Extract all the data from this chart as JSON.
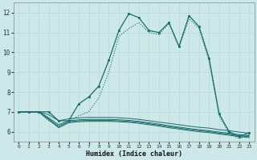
{
  "xlabel": "Humidex (Indice chaleur)",
  "background_color": "#cce8e8",
  "line_color": "#1a6b6b",
  "grid_color": "#b8d8d8",
  "xlim": [
    -0.5,
    23.5
  ],
  "ylim": [
    5.5,
    12.5
  ],
  "xticks": [
    0,
    1,
    2,
    3,
    4,
    5,
    6,
    7,
    8,
    9,
    10,
    11,
    12,
    13,
    14,
    15,
    16,
    17,
    18,
    19,
    20,
    21,
    22,
    23
  ],
  "yticks": [
    6,
    7,
    8,
    9,
    10,
    11,
    12
  ],
  "main_x": [
    0,
    1,
    2,
    3,
    4,
    5,
    6,
    7,
    8,
    9,
    10,
    11,
    12,
    13,
    14,
    15,
    16,
    17,
    18,
    19,
    20,
    21,
    22,
    23
  ],
  "main_y": [
    7.0,
    7.0,
    7.0,
    7.0,
    6.55,
    6.55,
    7.4,
    7.75,
    8.3,
    9.6,
    11.1,
    11.95,
    11.75,
    11.1,
    11.0,
    11.5,
    10.3,
    11.85,
    11.3,
    9.7,
    6.9,
    6.0,
    5.75,
    5.95
  ],
  "dotted_x": [
    0,
    1,
    2,
    3,
    4,
    5,
    6,
    7,
    8,
    9,
    10,
    11,
    12,
    13,
    14,
    15,
    16,
    17,
    18,
    19,
    20,
    21,
    22,
    23
  ],
  "dotted_y": [
    7.0,
    7.0,
    7.0,
    6.55,
    6.3,
    6.55,
    6.8,
    7.0,
    7.7,
    9.0,
    10.8,
    11.2,
    11.5,
    11.0,
    10.9,
    11.45,
    10.25,
    11.7,
    11.2,
    9.55,
    6.8,
    5.9,
    5.65,
    5.85
  ],
  "flat1_x": [
    0,
    1,
    2,
    3,
    4,
    5,
    6,
    7,
    8,
    9,
    10,
    11,
    12,
    13,
    14,
    15,
    16,
    17,
    18,
    19,
    20,
    21,
    22,
    23
  ],
  "flat1_y": [
    7.0,
    7.0,
    7.0,
    6.85,
    6.55,
    6.65,
    6.7,
    6.72,
    6.72,
    6.72,
    6.7,
    6.67,
    6.62,
    6.55,
    6.48,
    6.42,
    6.35,
    6.28,
    6.22,
    6.18,
    6.1,
    6.05,
    5.98,
    5.92
  ],
  "flat2_x": [
    0,
    1,
    2,
    3,
    4,
    5,
    6,
    7,
    8,
    9,
    10,
    11,
    12,
    13,
    14,
    15,
    16,
    17,
    18,
    19,
    20,
    21,
    22,
    23
  ],
  "flat2_y": [
    7.0,
    7.0,
    7.0,
    6.7,
    6.35,
    6.55,
    6.6,
    6.62,
    6.62,
    6.62,
    6.6,
    6.57,
    6.52,
    6.45,
    6.38,
    6.3,
    6.23,
    6.16,
    6.1,
    6.05,
    5.98,
    5.92,
    5.85,
    5.8
  ],
  "flat3_x": [
    0,
    1,
    2,
    3,
    4,
    5,
    6,
    7,
    8,
    9,
    10,
    11,
    12,
    13,
    14,
    15,
    16,
    17,
    18,
    19,
    20,
    21,
    22,
    23
  ],
  "flat3_y": [
    7.0,
    7.0,
    7.0,
    6.65,
    6.25,
    6.5,
    6.55,
    6.57,
    6.57,
    6.57,
    6.55,
    6.52,
    6.47,
    6.4,
    6.33,
    6.25,
    6.18,
    6.11,
    6.05,
    6.0,
    5.93,
    5.87,
    5.8,
    5.75
  ],
  "flat4_x": [
    0,
    1,
    2,
    3,
    4,
    5,
    6,
    7,
    8,
    9,
    10,
    11,
    12,
    13,
    14,
    15,
    16,
    17,
    18,
    19,
    20,
    21,
    22,
    23
  ],
  "flat4_y": [
    7.0,
    7.0,
    7.0,
    6.6,
    6.2,
    6.45,
    6.5,
    6.52,
    6.52,
    6.52,
    6.5,
    6.47,
    6.42,
    6.35,
    6.28,
    6.2,
    6.13,
    6.06,
    6.0,
    5.95,
    5.88,
    5.82,
    5.75,
    5.7
  ]
}
